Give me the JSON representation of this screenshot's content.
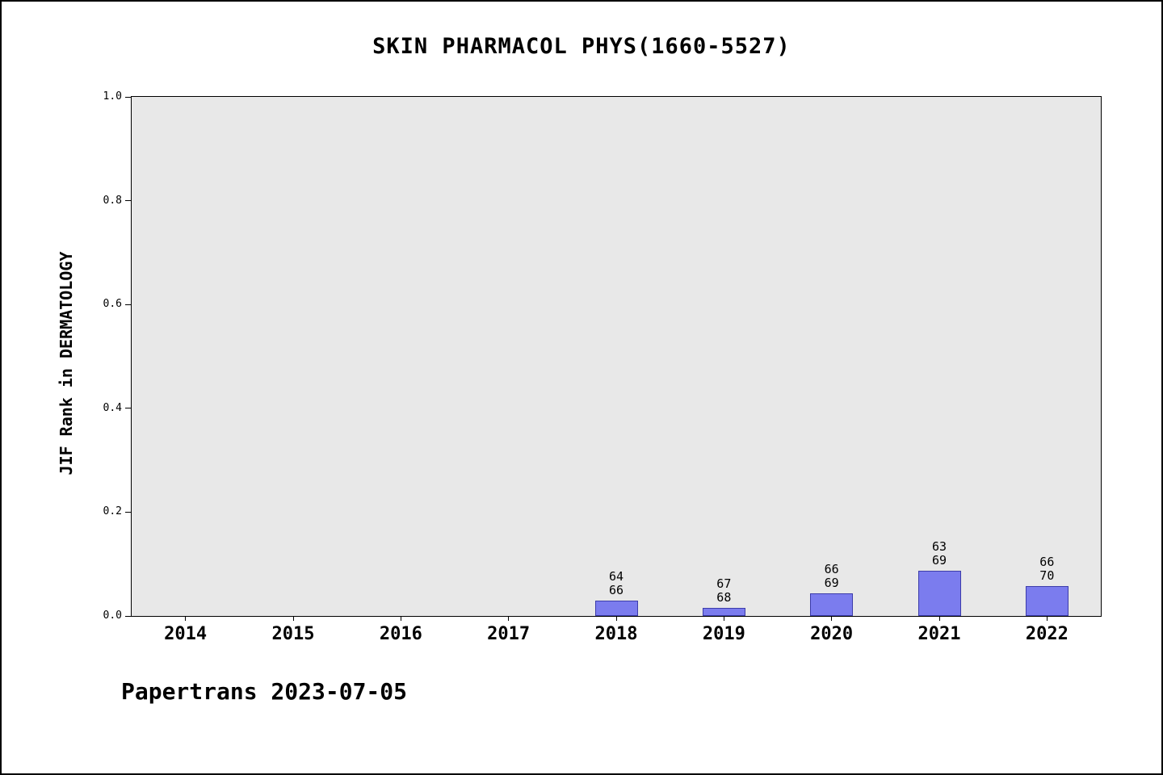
{
  "title": "SKIN PHARMACOL PHYS(1660-5527)",
  "footer": "Papertrans 2023-07-05",
  "chart_data": {
    "type": "bar",
    "title": "SKIN PHARMACOL PHYS(1660-5527)",
    "xlabel": "",
    "ylabel": "JIF Rank in DERMATOLOGY",
    "ylim": [
      0.0,
      1.0
    ],
    "yticks": [
      0.0,
      0.2,
      0.4,
      0.6,
      0.8,
      1.0
    ],
    "grid": false,
    "legend_position": "none",
    "plot_background": "#e8e8e8",
    "bar_color": "#7b7cee",
    "bar_edge_color": "#3c3caa",
    "categories": [
      "2014",
      "2015",
      "2016",
      "2017",
      "2018",
      "2019",
      "2020",
      "2021",
      "2022"
    ],
    "values": [
      null,
      null,
      null,
      null,
      0.03,
      0.015,
      0.043,
      0.087,
      0.057
    ],
    "bar_labels": [
      null,
      null,
      null,
      null,
      [
        "64",
        "66"
      ],
      [
        "67",
        "68"
      ],
      [
        "66",
        "69"
      ],
      [
        "63",
        "69"
      ],
      [
        "66",
        "70"
      ]
    ]
  }
}
